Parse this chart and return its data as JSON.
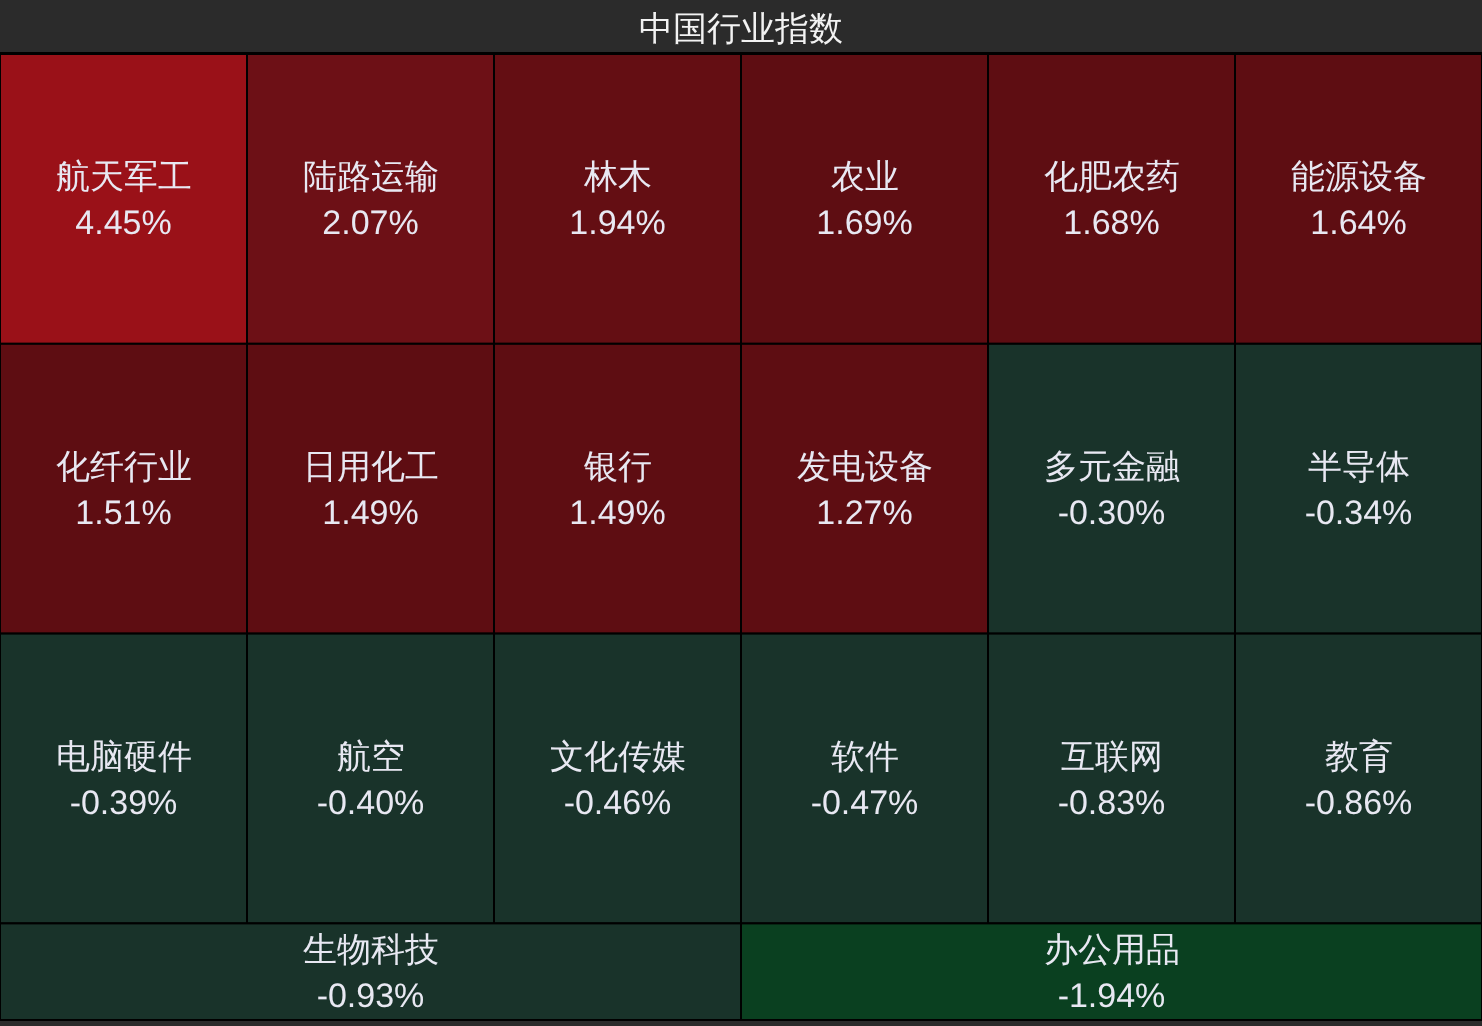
{
  "chart_data": {
    "type": "other",
    "title": "中国行业指数",
    "categories": [
      "航天军工",
      "陆路运输",
      "林木",
      "农业",
      "化肥农药",
      "能源设备",
      "化纤行业",
      "日用化工",
      "银行",
      "发电设备",
      "多元金融",
      "半导体",
      "电脑硬件",
      "航空",
      "文化传媒",
      "软件",
      "互联网",
      "教育",
      "生物科技",
      "办公用品"
    ],
    "values": [
      4.45,
      2.07,
      1.94,
      1.69,
      1.68,
      1.64,
      1.51,
      1.49,
      1.49,
      1.27,
      -0.3,
      -0.34,
      -0.39,
      -0.4,
      -0.46,
      -0.47,
      -0.83,
      -0.86,
      -0.93,
      -1.94
    ],
    "value_labels": [
      "4.45%",
      "2.07%",
      "1.94%",
      "1.69%",
      "1.68%",
      "1.64%",
      "1.51%",
      "1.49%",
      "1.49%",
      "1.27%",
      "-0.30%",
      "-0.34%",
      "-0.39%",
      "-0.40%",
      "-0.46%",
      "-0.47%",
      "-0.83%",
      "-0.86%",
      "-0.93%",
      "-1.94%"
    ],
    "colors": [
      "#9a1118",
      "#6d1016",
      "#640e13",
      "#5e0d12",
      "#5e0d12",
      "#5e0d12",
      "#5e0d12",
      "#5e0d12",
      "#5e0d12",
      "#5e0d12",
      "#19332a",
      "#19332a",
      "#19332a",
      "#19332a",
      "#19332a",
      "#19332a",
      "#19332a",
      "#19332a",
      "#19332a",
      "#0a4020"
    ]
  }
}
